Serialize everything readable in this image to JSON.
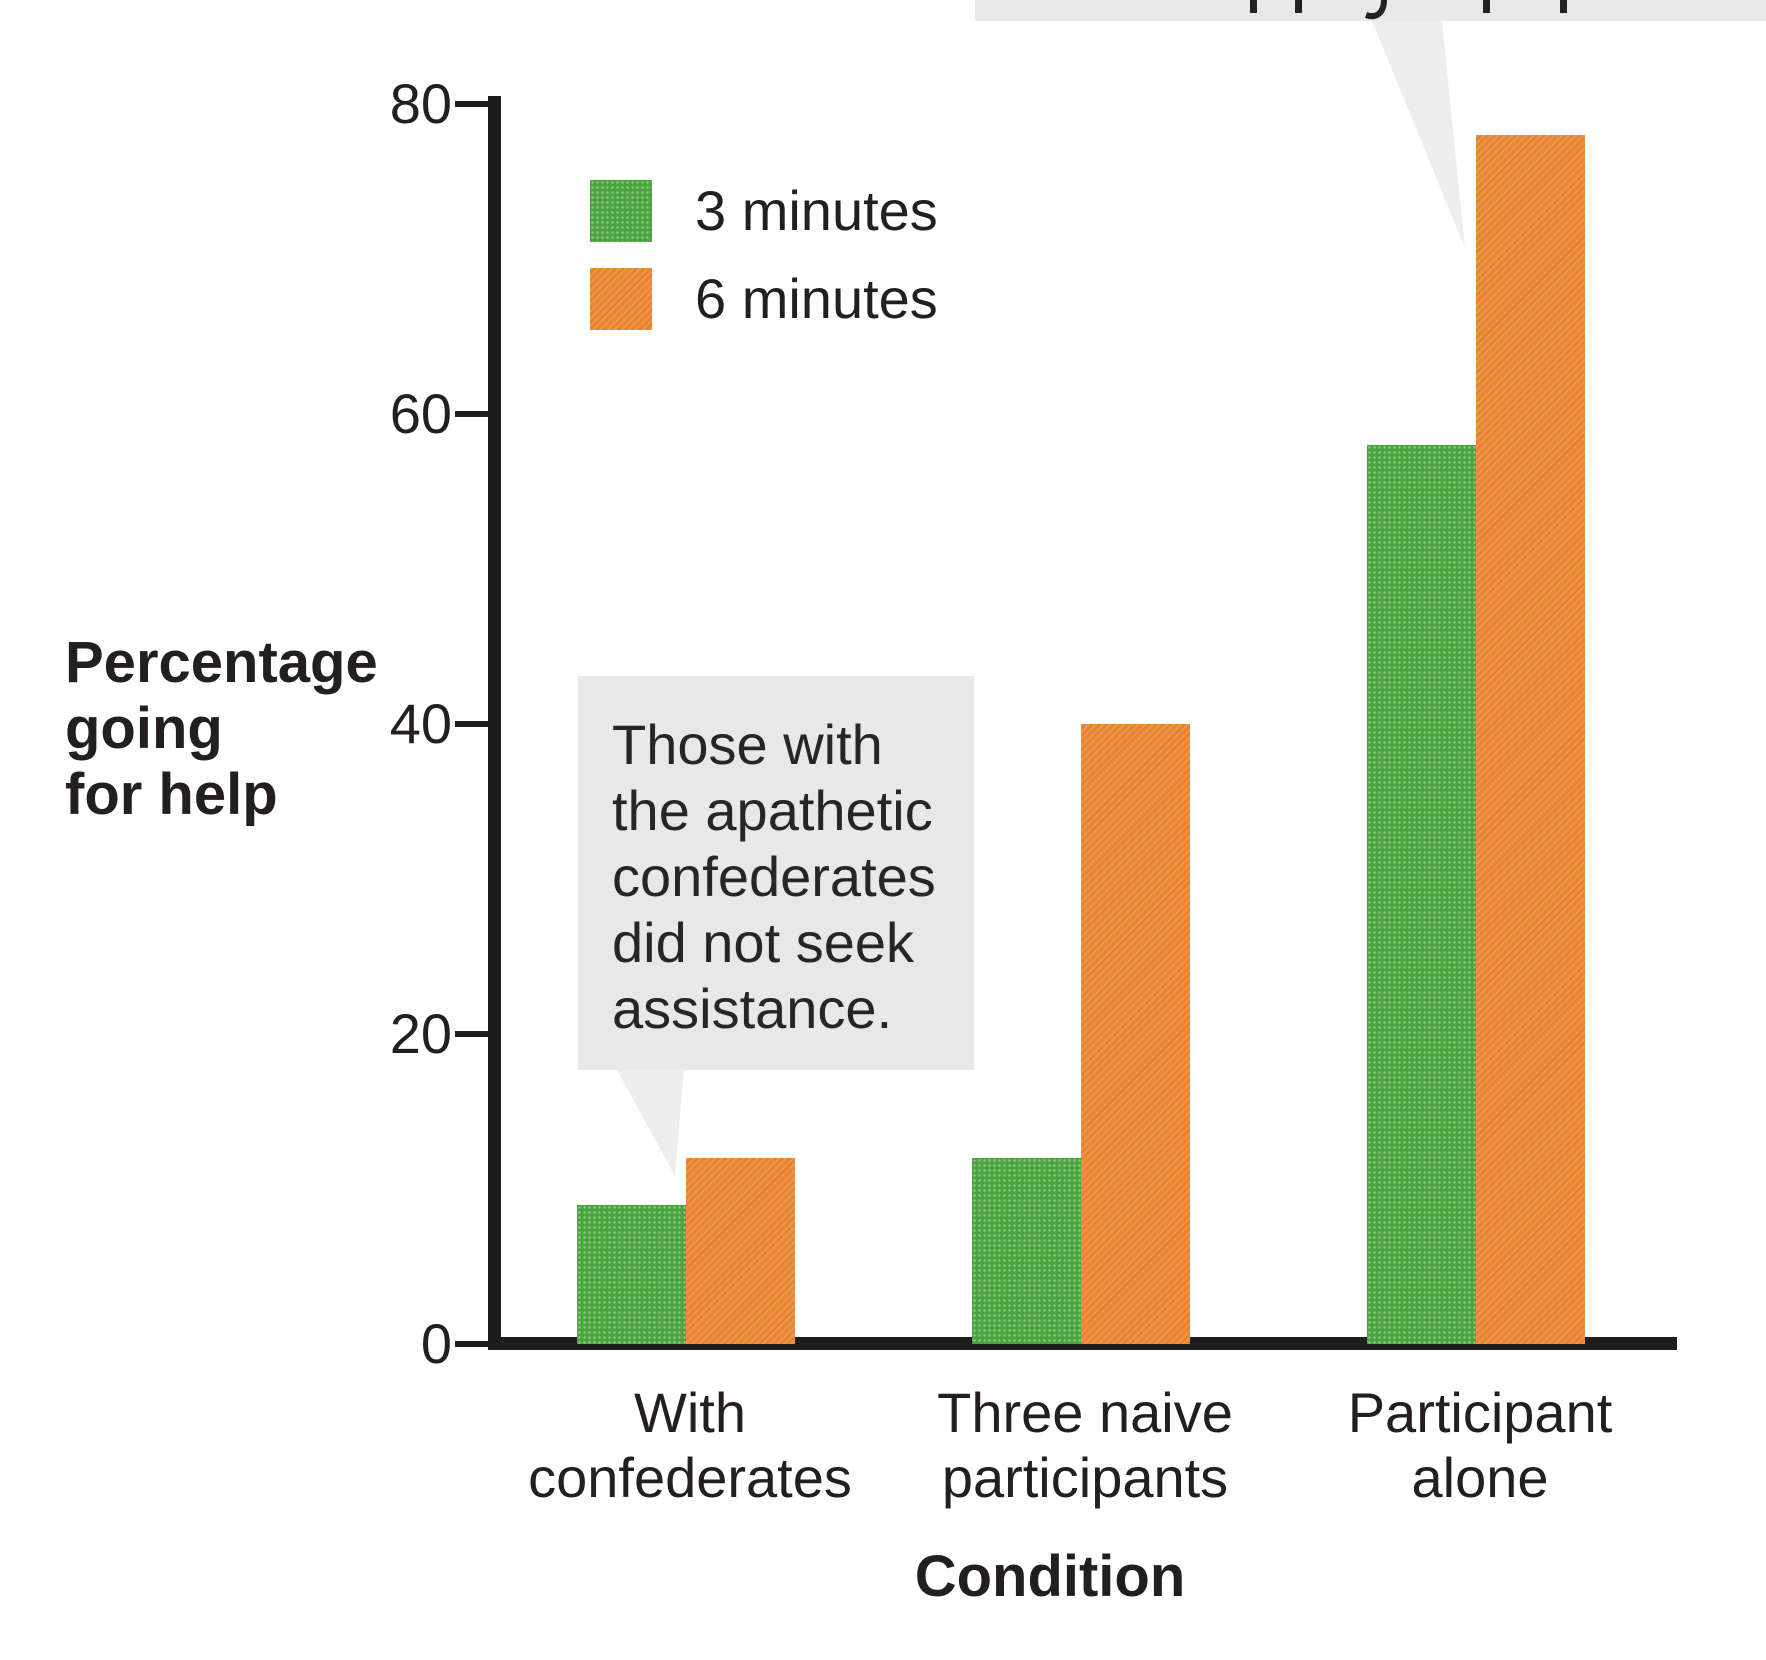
{
  "chart_data": {
    "type": "bar",
    "title": "",
    "xlabel": "Condition",
    "ylabel": "Percentage going for help",
    "ylabel_lines": [
      "Percentage",
      "going",
      "for help"
    ],
    "ylim": [
      0,
      80
    ],
    "yticks": [
      0,
      20,
      40,
      60,
      80
    ],
    "grid": false,
    "legend_position": "upper left inside plot",
    "categories": [
      "With confederates",
      "Three naive participants",
      "Participant alone"
    ],
    "category_lines": [
      [
        "With",
        "confederates"
      ],
      [
        "Three naive",
        "participants"
      ],
      [
        "Participant",
        "alone"
      ]
    ],
    "series": [
      {
        "name": "3 minutes",
        "color": "#4aa53e",
        "values": [
          9,
          12,
          58
        ]
      },
      {
        "name": "6 minutes",
        "color": "#e8832f",
        "values": [
          12,
          40,
          78
        ]
      }
    ]
  },
  "annotation_callout": {
    "text": "Those with the apathetic confederates did not seek assistance.",
    "lines": [
      "Those with",
      "the apathetic",
      "confederates",
      "did not seek",
      "assistance."
    ],
    "bg_color": "#e8e8e8",
    "points_to": "6-minute bar of With confederates"
  },
  "top_callout": {
    "note": "speech bubble cut off at top edge of image; only letter descenders visible",
    "bg_color": "#e8e8e8",
    "points_to": "6-minute bar of Participant alone"
  },
  "colors": {
    "background": "#ffffff",
    "axis": "#1d1d1b",
    "text": "#231f20",
    "green": "#4aa53e",
    "orange": "#e8832f",
    "callout_gray": "#e8e8e8",
    "tail_gray": "#ededed"
  }
}
